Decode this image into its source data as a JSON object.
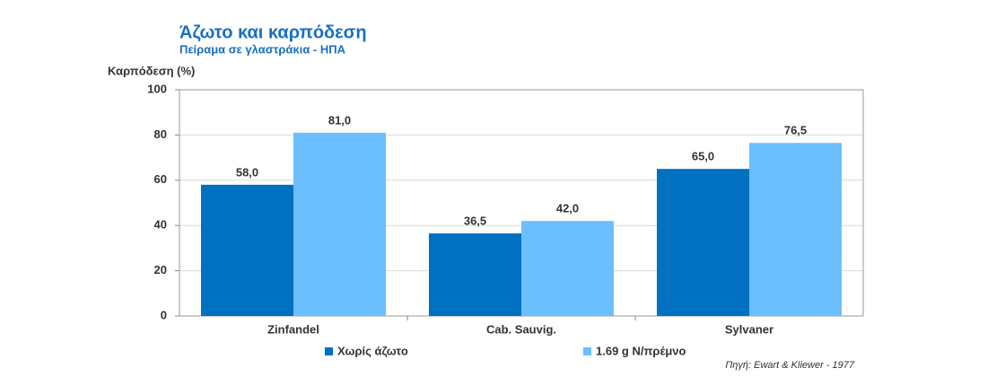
{
  "chart_data": {
    "type": "bar",
    "title": "Άζωτο και καρπόδεση",
    "subtitle": "Πείραμα σε γλαστράκια - ΗΠΑ",
    "y_label": "Καρπόδεση (%)",
    "source": "Πηγή: Ewart & Kliewer - 1977",
    "categories": [
      "Zinfandel",
      "Cab. Sauvig.",
      "Sylvaner"
    ],
    "series": [
      {
        "name": "Χωρίς άζωτο",
        "color": "#0070c0",
        "values": [
          58,
          36.5,
          65
        ],
        "value_labels": [
          "58,0",
          "36,5",
          "65,0"
        ]
      },
      {
        "name": "1.69 g N/πρέμνο",
        "color": "#6bbfff",
        "values": [
          81,
          42,
          76.5
        ],
        "value_labels": [
          "81,0",
          "42,0",
          "76,5"
        ]
      }
    ],
    "ylim": [
      0,
      100
    ],
    "yticks": [
      0,
      20,
      40,
      60,
      80,
      100
    ],
    "grid": true
  }
}
